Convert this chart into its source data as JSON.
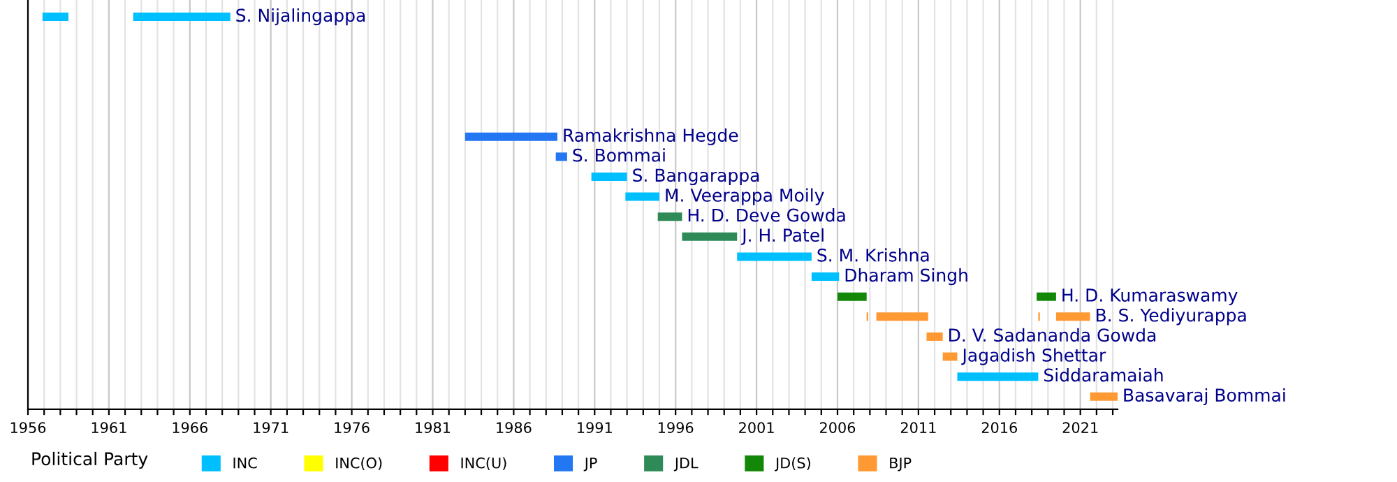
{
  "chart_data": {
    "type": "bar",
    "orientation": "horizontal",
    "legend_title": "Political Party",
    "legend": "bottom",
    "grid": "x",
    "categories": [
      null,
      null,
      null,
      null,
      null,
      null,
      null,
      null,
      null,
      null,
      null,
      null,
      null,
      null,
      null,
      null,
      null,
      null,
      null,
      null
    ],
    "xlim": [
      1956,
      2023.3
    ],
    "xticks": [
      1956,
      {
        "value": 1957,
        "label": null
      },
      {
        "value": 1958,
        "label": null
      },
      {
        "value": 1959,
        "label": null
      },
      {
        "value": 1960,
        "label": null
      },
      1961,
      {
        "value": 1962,
        "label": null
      },
      {
        "value": 1963,
        "label": null
      },
      {
        "value": 1964,
        "label": null
      },
      {
        "value": 1965,
        "label": null
      },
      1966,
      {
        "value": 1967,
        "label": null
      },
      {
        "value": 1968,
        "label": null
      },
      {
        "value": 1969,
        "label": null
      },
      {
        "value": 1970,
        "label": null
      },
      1971,
      {
        "value": 1972,
        "label": null
      },
      {
        "value": 1973,
        "label": null
      },
      {
        "value": 1974,
        "label": null
      },
      {
        "value": 1975,
        "label": null
      },
      1976,
      {
        "value": 1977,
        "label": null
      },
      {
        "value": 1978,
        "label": null
      },
      {
        "value": 1979,
        "label": null
      },
      {
        "value": 1980,
        "label": null
      },
      1981,
      {
        "value": 1982,
        "label": null
      },
      {
        "value": 1983,
        "label": null
      },
      {
        "value": 1984,
        "label": null
      },
      {
        "value": 1985,
        "label": null
      },
      1986,
      {
        "value": 1987,
        "label": null
      },
      {
        "value": 1988,
        "label": null
      },
      {
        "value": 1989,
        "label": null
      },
      {
        "value": 1990,
        "label": null
      },
      1991,
      {
        "value": 1992,
        "label": null
      },
      {
        "value": 1993,
        "label": null
      },
      {
        "value": 1994,
        "label": null
      },
      {
        "value": 1995,
        "label": null
      },
      1996,
      {
        "value": 1997,
        "label": null
      },
      {
        "value": 1998,
        "label": null
      },
      {
        "value": 1999,
        "label": null
      },
      {
        "value": 2000,
        "label": null
      },
      2001,
      {
        "value": 2002,
        "label": null
      },
      {
        "value": 2003,
        "label": null
      },
      {
        "value": 2004,
        "label": null
      },
      {
        "value": 2005,
        "label": null
      },
      2006,
      {
        "value": 2007,
        "label": null
      },
      {
        "value": 2008,
        "label": null
      },
      {
        "value": 2009,
        "label": null
      },
      {
        "value": 2010,
        "label": null
      },
      2011,
      {
        "value": 2012,
        "label": null
      },
      {
        "value": 2013,
        "label": null
      },
      {
        "value": 2014,
        "label": null
      },
      {
        "value": 2015,
        "label": null
      },
      2016,
      {
        "value": 2017,
        "label": null
      },
      {
        "value": 2018,
        "label": null
      },
      {
        "value": 2019,
        "label": null
      },
      {
        "value": 2020,
        "label": null
      },
      2021,
      {
        "value": 2022,
        "label": null
      },
      {
        "value": 2023,
        "label": null
      }
    ],
    "series": [
      {
        "name": "INC",
        "color": "#00bfff",
        "base": [
          1962.5,
          null,
          null,
          null,
          null,
          null,
          null,
          null,
          1990.8,
          1992.9,
          null,
          null,
          1999.8,
          2004.4,
          null,
          null,
          null,
          null,
          2013.4,
          null
        ],
        "values": [
          6.0,
          null,
          null,
          null,
          null,
          null,
          null,
          null,
          2.2,
          2.1,
          null,
          null,
          4.6,
          1.7,
          null,
          null,
          null,
          null,
          5.0,
          null
        ],
        "value_labels": [
          "S. Nijalingappa",
          null,
          null,
          null,
          null,
          null,
          null,
          null,
          "S. Bangarappa",
          "M. Veerappa Moily",
          null,
          null,
          "S. M. Krishna",
          "Dharam Singh",
          null,
          null,
          null,
          null,
          "Siddaramaiah",
          null
        ]
      },
      {
        "color": "#00bfff",
        "base": [
          1956.9,
          null,
          null,
          null,
          null,
          null,
          null,
          null,
          null,
          null,
          null,
          null,
          null,
          null,
          null,
          null,
          null,
          null,
          null,
          null
        ],
        "values": [
          1.6,
          null,
          null,
          null,
          null,
          null,
          null,
          null,
          null,
          null,
          null,
          null,
          null,
          null,
          null,
          null,
          null,
          null,
          null,
          null
        ]
      },
      {
        "name": "INC(O)",
        "color": "#ffff00",
        "base": [
          null,
          null,
          null,
          null,
          null,
          null,
          null,
          null,
          null,
          null,
          null,
          null,
          null,
          null,
          null,
          null,
          null,
          null,
          null,
          null
        ],
        "values": [
          null,
          null,
          null,
          null,
          null,
          null,
          null,
          null,
          null,
          null,
          null,
          null,
          null,
          null,
          null,
          null,
          null,
          null,
          null,
          null
        ]
      },
      {
        "name": "INC(U)",
        "color": "#ff0000",
        "base": [
          null,
          null,
          null,
          null,
          null,
          null,
          null,
          null,
          null,
          null,
          null,
          null,
          null,
          null,
          null,
          null,
          null,
          null,
          null,
          null
        ],
        "values": [
          null,
          null,
          null,
          null,
          null,
          null,
          null,
          null,
          null,
          null,
          null,
          null,
          null,
          null,
          null,
          null,
          null,
          null,
          null,
          null
        ]
      },
      {
        "name": "JP",
        "color": "#2477f2",
        "base": [
          null,
          null,
          null,
          null,
          null,
          null,
          1983.0,
          1988.6,
          null,
          null,
          null,
          null,
          null,
          null,
          null,
          null,
          null,
          null,
          null,
          null
        ],
        "values": [
          null,
          null,
          null,
          null,
          null,
          null,
          5.7,
          0.7,
          null,
          null,
          null,
          null,
          null,
          null,
          null,
          null,
          null,
          null,
          null,
          null
        ],
        "value_labels": [
          null,
          null,
          null,
          null,
          null,
          null,
          "Ramakrishna Hegde",
          "S. Bommai",
          null,
          null,
          null,
          null,
          null,
          null,
          null,
          null,
          null,
          null,
          null,
          null
        ]
      },
      {
        "name": "JDL",
        "color": "#2e8b57",
        "base": [
          null,
          null,
          null,
          null,
          null,
          null,
          null,
          null,
          null,
          null,
          1994.9,
          1996.4,
          null,
          null,
          null,
          null,
          null,
          null,
          null,
          null
        ],
        "values": [
          null,
          null,
          null,
          null,
          null,
          null,
          null,
          null,
          null,
          null,
          1.5,
          3.4,
          null,
          null,
          null,
          null,
          null,
          null,
          null,
          null
        ],
        "value_labels": [
          null,
          null,
          null,
          null,
          null,
          null,
          null,
          null,
          null,
          null,
          "H. D. Deve Gowda",
          "J. H. Patel",
          null,
          null,
          null,
          null,
          null,
          null,
          null,
          null
        ]
      },
      {
        "name": "JD(S)",
        "color": "#138808",
        "base": [
          null,
          null,
          null,
          null,
          null,
          null,
          null,
          null,
          null,
          null,
          null,
          null,
          null,
          null,
          2006.0,
          null,
          null,
          null,
          null,
          null
        ],
        "values": [
          null,
          null,
          null,
          null,
          null,
          null,
          null,
          null,
          null,
          null,
          null,
          null,
          null,
          null,
          1.8,
          null,
          null,
          null,
          null,
          null
        ]
      },
      {
        "color": "#138808",
        "base": [
          null,
          null,
          null,
          null,
          null,
          null,
          null,
          null,
          null,
          null,
          null,
          null,
          null,
          null,
          2018.3,
          null,
          null,
          null,
          null,
          null
        ],
        "values": [
          null,
          null,
          null,
          null,
          null,
          null,
          null,
          null,
          null,
          null,
          null,
          null,
          null,
          null,
          1.2,
          null,
          null,
          null,
          null,
          null
        ],
        "value_labels": [
          null,
          null,
          null,
          null,
          null,
          null,
          null,
          null,
          null,
          null,
          null,
          null,
          null,
          null,
          "H. D. Kumaraswamy",
          null,
          null,
          null,
          null,
          null
        ]
      },
      {
        "name": "BJP",
        "color": "#ff9933",
        "base": [
          null,
          null,
          null,
          null,
          null,
          null,
          null,
          null,
          null,
          null,
          null,
          null,
          null,
          null,
          null,
          2008.4,
          2011.5,
          2012.5,
          null,
          2021.6
        ],
        "values": [
          null,
          null,
          null,
          null,
          null,
          null,
          null,
          null,
          null,
          null,
          null,
          null,
          null,
          null,
          null,
          3.2,
          1.0,
          0.9,
          null,
          1.7
        ],
        "value_labels": [
          null,
          null,
          null,
          null,
          null,
          null,
          null,
          null,
          null,
          null,
          null,
          null,
          null,
          null,
          null,
          null,
          "D. V. Sadananda Gowda",
          "Jagadish Shettar",
          null,
          "Basavaraj Bommai"
        ]
      },
      {
        "color": "#ff9933",
        "base": [
          null,
          null,
          null,
          null,
          null,
          null,
          null,
          null,
          null,
          null,
          null,
          null,
          null,
          null,
          null,
          2007.8,
          null,
          null,
          null,
          null
        ],
        "values": [
          null,
          null,
          null,
          null,
          null,
          null,
          null,
          null,
          null,
          null,
          null,
          null,
          null,
          null,
          null,
          0.1,
          null,
          null,
          null,
          null
        ]
      },
      {
        "color": "#ff9933",
        "base": [
          null,
          null,
          null,
          null,
          null,
          null,
          null,
          null,
          null,
          null,
          null,
          null,
          null,
          null,
          null,
          2018.4,
          null,
          null,
          null,
          null
        ],
        "values": [
          null,
          null,
          null,
          null,
          null,
          null,
          null,
          null,
          null,
          null,
          null,
          null,
          null,
          null,
          null,
          0.1,
          null,
          null,
          null,
          null
        ]
      },
      {
        "color": "#ff9933",
        "base": [
          null,
          null,
          null,
          null,
          null,
          null,
          null,
          null,
          null,
          null,
          null,
          null,
          null,
          null,
          null,
          2019.5,
          null,
          null,
          null,
          null
        ],
        "values": [
          null,
          null,
          null,
          null,
          null,
          null,
          null,
          null,
          null,
          null,
          null,
          null,
          null,
          null,
          null,
          2.1,
          null,
          null,
          null,
          null
        ],
        "value_labels": [
          null,
          null,
          null,
          null,
          null,
          null,
          null,
          null,
          null,
          null,
          null,
          null,
          null,
          null,
          null,
          "B. S. Yediyurappa",
          null,
          null,
          null,
          null
        ]
      }
    ]
  }
}
